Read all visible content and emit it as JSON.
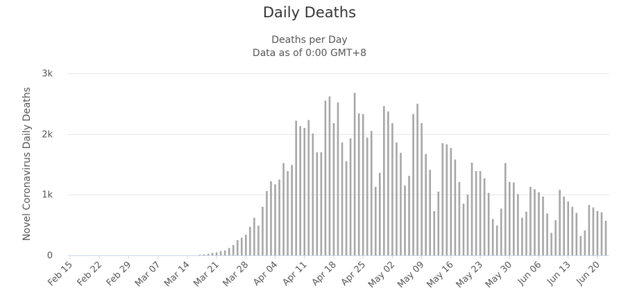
{
  "chart_data": {
    "type": "bar",
    "title": "Daily Deaths",
    "subtitle": "Deaths per Day",
    "subtitle2": "Data as of 0:00 GMT+8",
    "xlabel": "",
    "ylabel": "Novel Coronavirus Daily Deaths",
    "ylim": [
      0,
      3000
    ],
    "yticks": [
      {
        "value": 0,
        "label": "0"
      },
      {
        "value": 1000,
        "label": "1k"
      },
      {
        "value": 2000,
        "label": "2k"
      },
      {
        "value": 3000,
        "label": "3k"
      }
    ],
    "grid": true,
    "start_date": "Feb 15",
    "xtick_labels": [
      "Feb 15",
      "Feb 22",
      "Feb 29",
      "Mar 07",
      "Mar 14",
      "Mar 21",
      "Mar 28",
      "Apr 04",
      "Apr 11",
      "Apr 18",
      "Apr 25",
      "May 02",
      "May 09",
      "May 16",
      "May 23",
      "May 30",
      "Jun 06",
      "Jun 13",
      "Jun 20"
    ],
    "bar_color": "#a6a6a6",
    "values": [
      0,
      0,
      0,
      0,
      0,
      0,
      0,
      0,
      0,
      0,
      0,
      0,
      0,
      0,
      0,
      0,
      0,
      0,
      0,
      0,
      0,
      0,
      0,
      0,
      0,
      0,
      0,
      0,
      0,
      0,
      0,
      10,
      15,
      25,
      40,
      50,
      70,
      80,
      120,
      170,
      250,
      290,
      340,
      470,
      620,
      490,
      800,
      1060,
      1220,
      1170,
      1250,
      1520,
      1390,
      1490,
      2220,
      2130,
      2100,
      2230,
      2010,
      1700,
      1700,
      2550,
      2620,
      2180,
      2520,
      1860,
      1550,
      1930,
      2680,
      2340,
      2330,
      1940,
      2050,
      1130,
      1360,
      2460,
      2370,
      2180,
      1860,
      1690,
      1150,
      1310,
      2330,
      2500,
      2180,
      1670,
      1410,
      730,
      1050,
      1850,
      1830,
      1770,
      1580,
      1210,
      850,
      1000,
      1530,
      1390,
      1390,
      1270,
      1030,
      600,
      490,
      770,
      1520,
      1210,
      1200,
      1010,
      620,
      720,
      1130,
      1090,
      1040,
      970,
      690,
      370,
      580,
      1080,
      970,
      890,
      800,
      700,
      320,
      410,
      830,
      790,
      730,
      710,
      570
    ]
  }
}
